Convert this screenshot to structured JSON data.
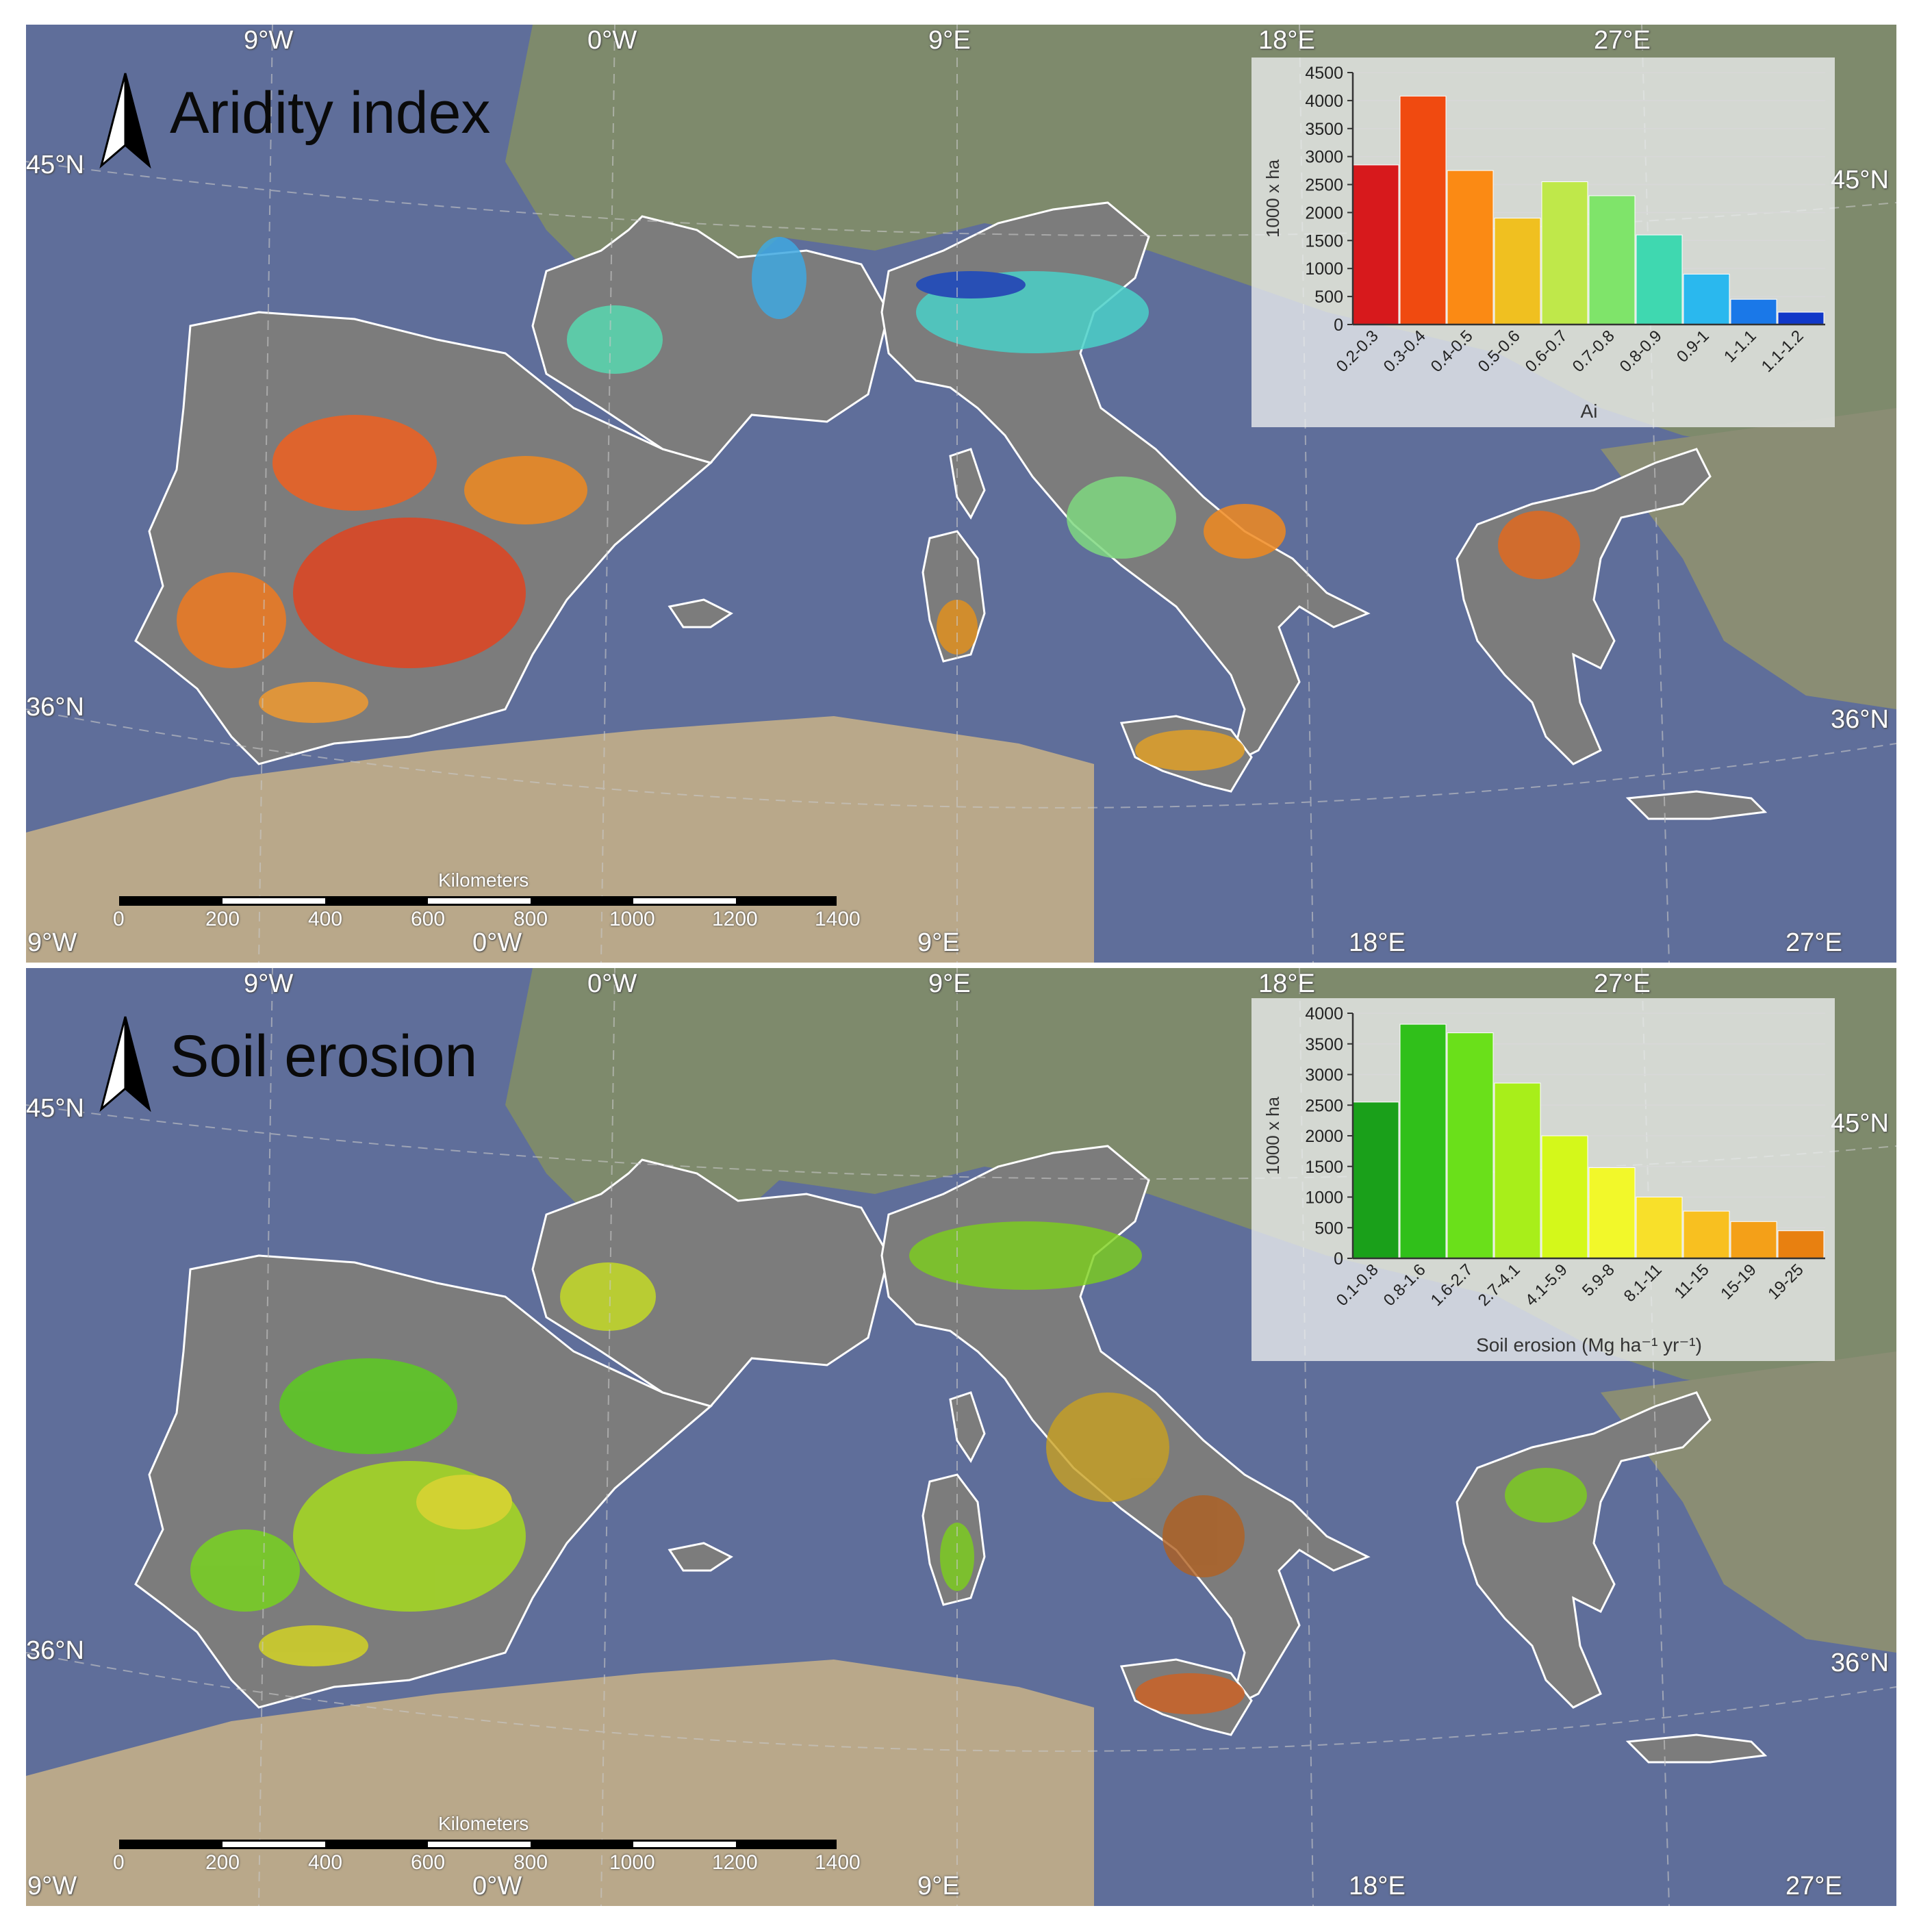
{
  "panels": [
    {
      "title": "Aridity index",
      "lat_labels": {
        "north": "45°N",
        "south": "36°N"
      },
      "lon_labels": [
        "9°W",
        "0°W",
        "9°E",
        "18°E",
        "27°E"
      ],
      "scale_bar": {
        "unit": "Kilometers",
        "ticks": [
          "0",
          "200",
          "400",
          "600",
          "800",
          "1000",
          "1200",
          "1400"
        ]
      }
    },
    {
      "title": "Soil erosion",
      "lat_labels": {
        "north": "45°N",
        "south": "36°N"
      },
      "lon_labels": [
        "9°W",
        "0°W",
        "9°E",
        "18°E",
        "27°E"
      ],
      "scale_bar": {
        "unit": "Kilometers",
        "ticks": [
          "0",
          "200",
          "400",
          "600",
          "800",
          "1000",
          "1200",
          "1400"
        ]
      }
    }
  ],
  "colors": {
    "sea": "#5f6e9a",
    "land_bg": "#8a8d7c",
    "study_area": "#7c7c7c",
    "coastline": "#ffffff"
  },
  "chart_data": [
    {
      "type": "bar",
      "xlabel": "Ai",
      "ylabel": "1000 x ha",
      "categories": [
        "0.2-0.3",
        "0.3-0.4",
        "0.4-0.5",
        "0.5-0.6",
        "0.6-0.7",
        "0.7-0.8",
        "0.8-0.9",
        "0.9-1",
        "1-1.1",
        "1.1-1.2"
      ],
      "values": [
        2850,
        4080,
        2750,
        1900,
        2550,
        2300,
        1600,
        900,
        450,
        220
      ],
      "colors": [
        "#d7191c",
        "#f04a10",
        "#fb8a14",
        "#f0c020",
        "#bfe84a",
        "#7fe46a",
        "#3fd8b0",
        "#2ab8ee",
        "#1a78e8",
        "#1038c8"
      ],
      "ylim": [
        0,
        4500
      ],
      "yticks": [
        0,
        500,
        1000,
        1500,
        2000,
        2500,
        3000,
        3500,
        4000,
        4500
      ]
    },
    {
      "type": "bar",
      "xlabel": "Soil erosion (Mg ha⁻¹ yr⁻¹)",
      "ylabel": "1000 x ha",
      "categories": [
        "0.1-0.8",
        "0.8-1.6",
        "1.6-2.7",
        "2.7-4.1",
        "4.1-5.9",
        "5.9-8",
        "8.1-11",
        "11-15",
        "15-19",
        "19-25"
      ],
      "values": [
        2550,
        3820,
        3680,
        2860,
        2000,
        1480,
        1000,
        770,
        600,
        450
      ],
      "colors": [
        "#1aa01a",
        "#30c01a",
        "#6ae01a",
        "#a8ee1a",
        "#d4f81a",
        "#f2f82a",
        "#f8e02a",
        "#f8c020",
        "#f4a018",
        "#e88010"
      ],
      "ylim": [
        0,
        4000
      ],
      "yticks": [
        0,
        500,
        1000,
        1500,
        2000,
        2500,
        3000,
        3500,
        4000
      ]
    }
  ]
}
